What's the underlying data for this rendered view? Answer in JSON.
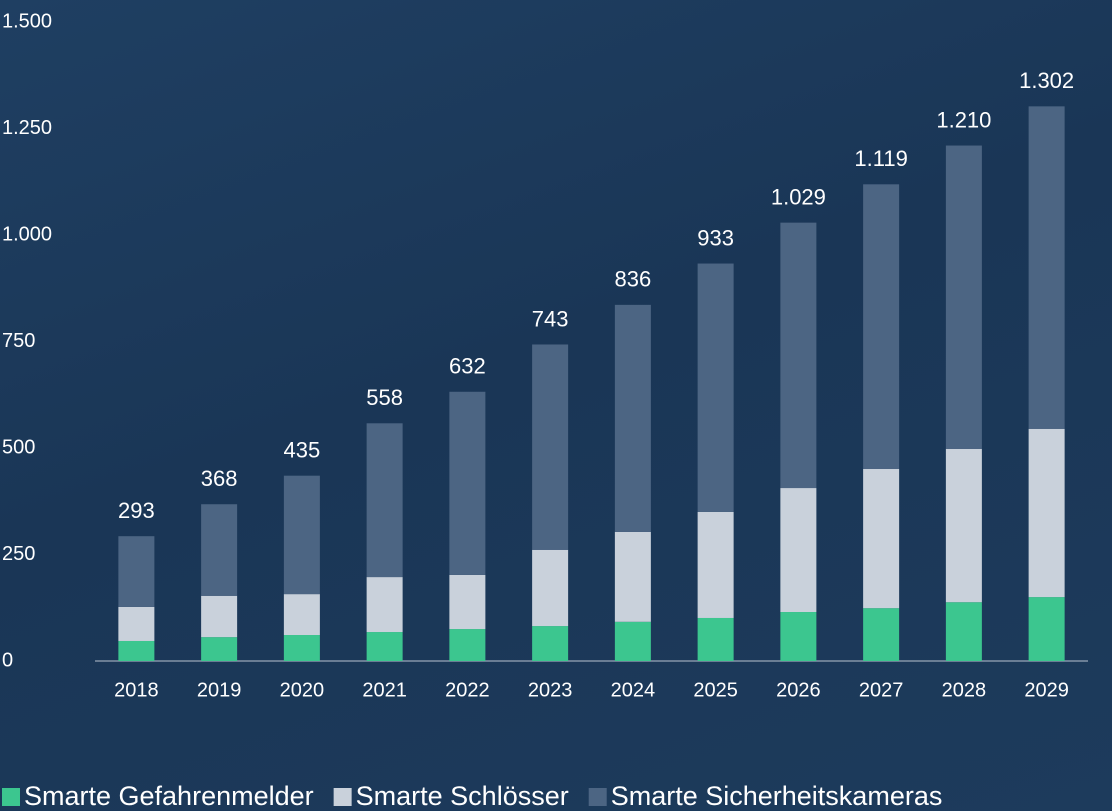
{
  "chart_data": {
    "type": "stacked_bar",
    "categories": [
      "2018",
      "2019",
      "2020",
      "2021",
      "2022",
      "2023",
      "2024",
      "2025",
      "2026",
      "2027",
      "2028",
      "2029"
    ],
    "series": [
      {
        "name": "Smarte Gefahrenmelder",
        "color": "#3cc68f",
        "values": [
          47,
          56,
          61,
          68,
          75,
          82,
          92,
          101,
          115,
          124,
          138,
          150
        ]
      },
      {
        "name": "Smarte Schlösser",
        "color": "#c9d1db",
        "values": [
          80,
          97,
          96,
          129,
          127,
          179,
          211,
          249,
          291,
          327,
          360,
          395
        ]
      },
      {
        "name": "Smarte Sicherheitskameras",
        "color": "#4c6583",
        "values": [
          166,
          215,
          278,
          361,
          430,
          482,
          533,
          583,
          623,
          668,
          712,
          757
        ]
      }
    ],
    "totals": {
      "values": [
        293,
        368,
        435,
        558,
        632,
        743,
        836,
        933,
        1029,
        1119,
        1210,
        1302
      ],
      "value_labels": [
        "293",
        "368",
        "435",
        "558",
        "632",
        "743",
        "836",
        "933",
        "1.029",
        "1.119",
        "1.210",
        "1.302"
      ]
    },
    "ylim": [
      0,
      1500
    ],
    "yticks": [
      0,
      250,
      500,
      750,
      {
        "value": 1000,
        "label": "1.000"
      },
      {
        "value": 1250,
        "label": "1.250"
      },
      {
        "value": 1500,
        "label": "1.500"
      }
    ],
    "legend": "bottom"
  }
}
